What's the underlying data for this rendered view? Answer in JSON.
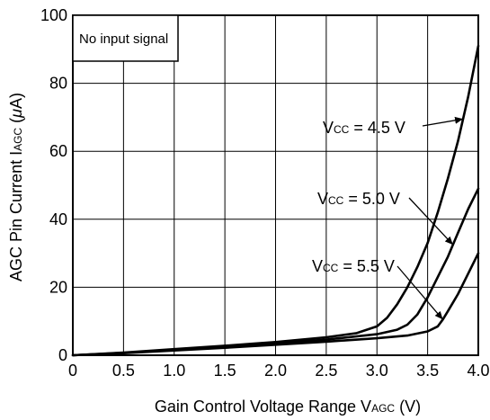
{
  "chart_data": {
    "type": "line",
    "xlabel": "Gain Control Voltage Range  V",
    "xlabel_sub": "AGC",
    "xlabel_unit": " (V)",
    "ylabel": "AGC Pin Current I",
    "ylabel_sub": "AGC",
    "ylabel_unit_open": " (",
    "ylabel_unit_mu": "μ",
    "ylabel_unit_rest": "A)",
    "xlim": [
      0,
      4.0
    ],
    "ylim": [
      0,
      100
    ],
    "x_ticks": [
      "0",
      "0.5",
      "1.0",
      "1.5",
      "2.0",
      "2.5",
      "3.0",
      "3.5",
      "4.0"
    ],
    "y_ticks": [
      "0",
      "20",
      "40",
      "60",
      "80",
      "100"
    ],
    "grid": true,
    "legend": "none",
    "note": "No input signal",
    "series": [
      {
        "name": "Vcc = 4.5 V",
        "x": [
          0,
          0.5,
          1.0,
          1.5,
          2.0,
          2.5,
          2.8,
          3.0,
          3.1,
          3.2,
          3.3,
          3.4,
          3.5,
          3.6,
          3.7,
          3.8,
          3.9,
          4.0
        ],
        "y": [
          0,
          0.8,
          1.8,
          2.8,
          3.9,
          5.3,
          6.5,
          8.5,
          11,
          15,
          20,
          26,
          33,
          42,
          52,
          63,
          76,
          91
        ]
      },
      {
        "name": "Vcc = 5.0 V",
        "x": [
          0,
          0.5,
          1.0,
          1.5,
          2.0,
          2.5,
          3.0,
          3.2,
          3.3,
          3.4,
          3.5,
          3.6,
          3.7,
          3.8,
          3.9,
          4.0
        ],
        "y": [
          0,
          0.7,
          1.6,
          2.5,
          3.5,
          4.6,
          6.2,
          7.5,
          9,
          12,
          17,
          23,
          29,
          36,
          43,
          49
        ]
      },
      {
        "name": "Vcc = 5.5 V",
        "x": [
          0,
          0.5,
          1.0,
          1.5,
          2.0,
          2.5,
          3.0,
          3.3,
          3.5,
          3.6,
          3.65,
          3.7,
          3.8,
          3.9,
          4.0
        ],
        "y": [
          0,
          0.6,
          1.4,
          2.2,
          3.1,
          4.0,
          5.0,
          5.8,
          7,
          8.5,
          10.5,
          13,
          18,
          24,
          30
        ]
      }
    ],
    "annotations": [
      {
        "main": "V",
        "sub": "CC",
        "rest": " = 4.5 V",
        "series": 0,
        "arrow_x": 3.85
      },
      {
        "main": "V",
        "sub": "CC",
        "rest": " = 5.0 V",
        "series": 1,
        "arrow_x": 3.75
      },
      {
        "main": "V",
        "sub": "CC",
        "rest": " = 5.5 V",
        "series": 2,
        "arrow_x": 3.65
      }
    ]
  }
}
